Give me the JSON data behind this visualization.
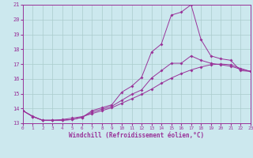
{
  "xlabel": "Windchill (Refroidissement éolien,°C)",
  "bg_color": "#cce8ee",
  "grid_color": "#aacccc",
  "line_color": "#993399",
  "xlim": [
    0,
    23
  ],
  "ylim": [
    13,
    21
  ],
  "xticks": [
    0,
    1,
    2,
    3,
    4,
    5,
    6,
    7,
    8,
    9,
    10,
    11,
    12,
    13,
    14,
    15,
    16,
    17,
    18,
    19,
    20,
    21,
    22,
    23
  ],
  "yticks": [
    13,
    14,
    15,
    16,
    17,
    18,
    19,
    20,
    21
  ],
  "curve1_x": [
    0,
    1,
    2,
    3,
    4,
    5,
    6,
    7,
    8,
    9,
    10,
    11,
    12,
    13,
    14,
    15,
    16,
    17,
    18,
    19,
    20,
    21,
    22,
    23
  ],
  "curve1_y": [
    13.85,
    13.45,
    13.2,
    13.2,
    13.2,
    13.25,
    13.4,
    13.85,
    14.05,
    14.25,
    15.1,
    15.5,
    16.1,
    17.8,
    18.35,
    20.3,
    20.5,
    21.0,
    18.65,
    17.55,
    17.35,
    17.25,
    16.55,
    16.5
  ],
  "curve2_x": [
    0,
    1,
    2,
    3,
    4,
    5,
    6,
    7,
    8,
    9,
    10,
    11,
    12,
    13,
    14,
    15,
    16,
    17,
    18,
    19,
    20,
    21,
    22,
    23
  ],
  "curve2_y": [
    13.85,
    13.45,
    13.2,
    13.2,
    13.2,
    13.25,
    13.4,
    13.75,
    13.95,
    14.15,
    14.55,
    14.95,
    15.25,
    16.05,
    16.55,
    17.05,
    17.05,
    17.55,
    17.25,
    17.05,
    16.95,
    16.85,
    16.65,
    16.5
  ],
  "curve3_x": [
    0,
    1,
    2,
    3,
    4,
    5,
    6,
    7,
    8,
    9,
    10,
    11,
    12,
    13,
    14,
    15,
    16,
    17,
    18,
    19,
    20,
    21,
    22,
    23
  ],
  "curve3_y": [
    13.85,
    13.48,
    13.2,
    13.2,
    13.25,
    13.35,
    13.45,
    13.65,
    13.85,
    14.05,
    14.35,
    14.65,
    14.95,
    15.3,
    15.7,
    16.05,
    16.35,
    16.6,
    16.8,
    16.95,
    17.0,
    16.95,
    16.7,
    16.5
  ]
}
